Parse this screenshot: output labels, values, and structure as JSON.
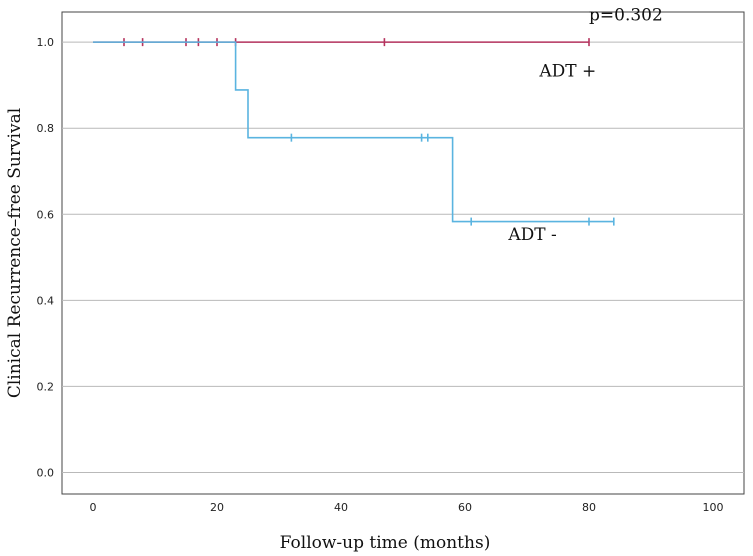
{
  "chart_data": {
    "type": "line",
    "xlabel": "Follow-up time (months)",
    "ylabel": "Clinical Recurrence–free Survival",
    "xlim": [
      -5,
      105
    ],
    "ylim": [
      -0.05,
      1.07
    ],
    "x_ticks": [
      {
        "value": 0,
        "label": "0"
      },
      {
        "value": 20,
        "label": "20"
      },
      {
        "value": 40,
        "label": "40"
      },
      {
        "value": 60,
        "label": "60"
      },
      {
        "value": 80,
        "label": "80"
      },
      {
        "value": 100,
        "label": "100"
      }
    ],
    "y_ticks": [
      {
        "value": 0,
        "label": "0.0"
      },
      {
        "value": 0.2,
        "label": "0.2"
      },
      {
        "value": 0.4,
        "label": "0.4"
      },
      {
        "value": 0.6,
        "label": "0.6"
      },
      {
        "value": 0.8,
        "label": "0.8"
      },
      {
        "value": 1.0,
        "label": "1.0"
      }
    ],
    "grid": "horizontal",
    "series": [
      {
        "name": "ADT +",
        "color": "#b5335e",
        "steps": [
          [
            0,
            1.0
          ],
          [
            80,
            1.0
          ]
        ],
        "censored": [
          5,
          8,
          15,
          17,
          20,
          23,
          47,
          80
        ]
      },
      {
        "name": "ADT -",
        "color": "#5ab4e0",
        "steps": [
          [
            0,
            1.0
          ],
          [
            23,
            0.889
          ],
          [
            25,
            0.778
          ],
          [
            58,
            0.583
          ],
          [
            84,
            0.583
          ]
        ],
        "censored": [
          32,
          53,
          54,
          61,
          80,
          84
        ]
      }
    ],
    "annotations": [
      {
        "text": "p=0.302",
        "x": 80,
        "y": 1.05
      },
      {
        "text": "ADT +",
        "x": 72,
        "y": 0.92
      },
      {
        "text": "ADT -",
        "x": 67,
        "y": 0.54
      }
    ]
  }
}
